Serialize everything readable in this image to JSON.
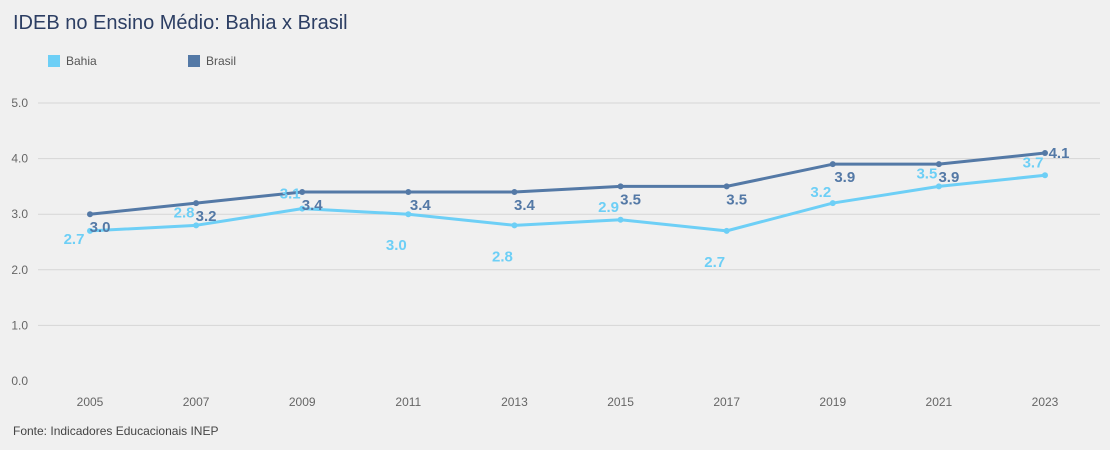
{
  "title": "IDEB no Ensino Médio: Bahia x Brasil",
  "source": "Fonte: Indicadores Educacionais INEP",
  "chart_data": {
    "type": "line",
    "title": "IDEB no Ensino Médio: Bahia x Brasil",
    "x": [
      "2005",
      "2007",
      "2009",
      "2011",
      "2013",
      "2015",
      "2017",
      "2019",
      "2021",
      "2023"
    ],
    "ylim": [
      0,
      5
    ],
    "yticks": [
      "0.0",
      "1.0",
      "2.0",
      "3.0",
      "4.0",
      "5.0"
    ],
    "grid": true,
    "legend_position": "top-left",
    "series": [
      {
        "name": "Bahia",
        "color": "#6dcff6",
        "values": [
          2.7,
          2.8,
          3.1,
          3.0,
          2.8,
          2.9,
          2.7,
          3.2,
          3.5,
          3.7
        ],
        "labels": [
          "2.7",
          "2.8",
          "3.1",
          "3.0",
          "2.8",
          "2.9",
          "2.7",
          "3.2",
          "3.5",
          "3.7"
        ]
      },
      {
        "name": "Brasil",
        "color": "#5479a6",
        "values": [
          3.0,
          3.2,
          3.4,
          3.4,
          3.4,
          3.5,
          3.5,
          3.9,
          3.9,
          4.1
        ],
        "labels": [
          "3.0",
          "3.2",
          "3.4",
          "3.4",
          "3.4",
          "3.5",
          "3.5",
          "3.9",
          "3.9",
          "4.1"
        ]
      }
    ]
  }
}
